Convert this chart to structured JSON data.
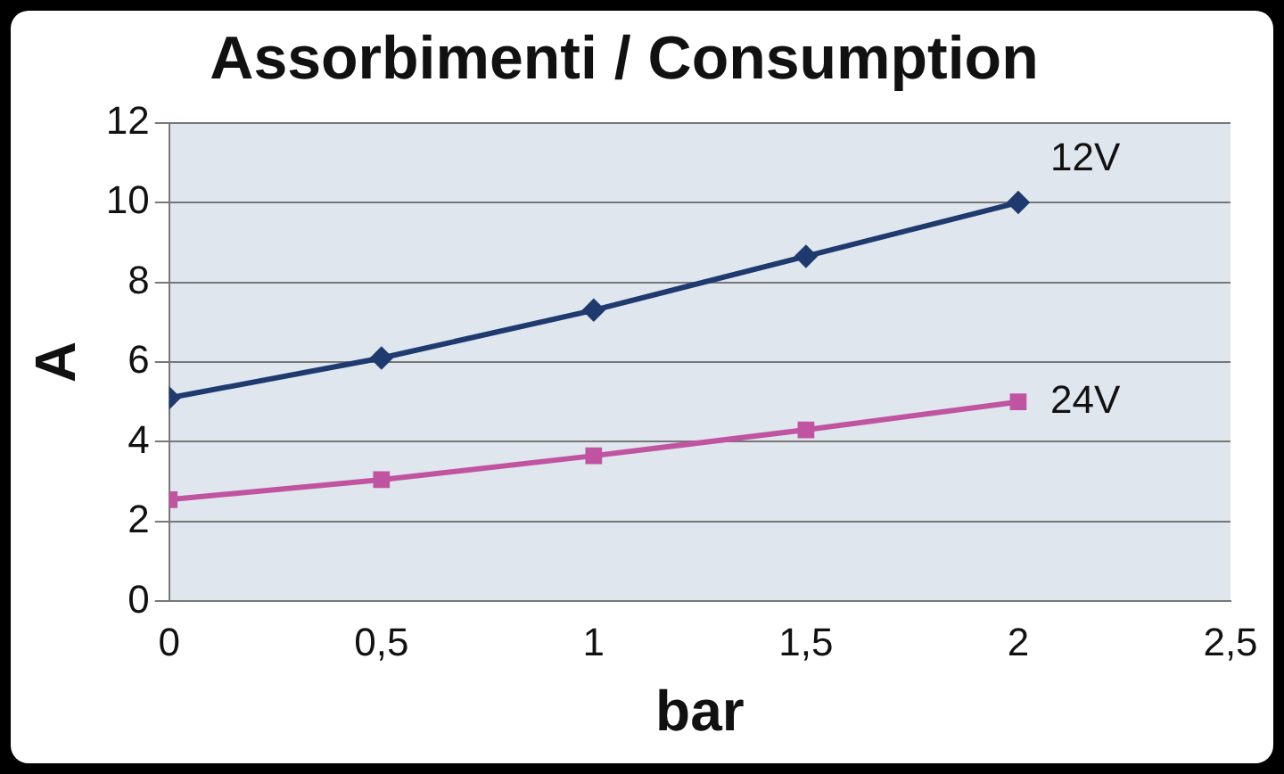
{
  "chart_data": {
    "type": "line",
    "title": "Assorbimenti / Consumption",
    "xlabel": "bar",
    "ylabel": "A",
    "x": [
      0,
      0.5,
      1,
      1.5,
      2
    ],
    "series": [
      {
        "name": "12V",
        "color": "#1f3a6e",
        "values": [
          5.1,
          6.1,
          7.3,
          8.65,
          10
        ],
        "marker": "diamond"
      },
      {
        "name": "24V",
        "color": "#c054a0",
        "values": [
          2.55,
          3.05,
          3.65,
          4.3,
          5.0
        ],
        "marker": "square"
      }
    ],
    "xlim": [
      0,
      2.5
    ],
    "xticks": [
      0,
      {
        "value": 0.5,
        "label": "0,5"
      },
      1,
      {
        "value": 1.5,
        "label": "1,5"
      },
      2,
      {
        "value": 2.5,
        "label": "2,5"
      }
    ],
    "ylim": [
      0,
      12
    ],
    "yticks": [
      0,
      2,
      4,
      6,
      8,
      10,
      12
    ],
    "grid": "y",
    "legend": false,
    "line_style": "solid"
  }
}
